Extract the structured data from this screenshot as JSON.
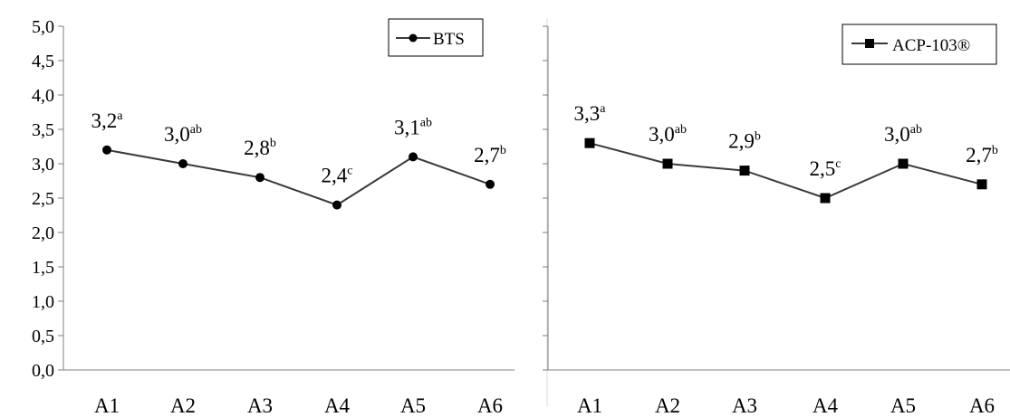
{
  "chart_data": [
    {
      "type": "line",
      "title": "",
      "xlabel": "",
      "ylabel": "",
      "categories": [
        "A1",
        "A2",
        "A3",
        "A4",
        "A5",
        "A6"
      ],
      "y_ticks": [
        "0,0",
        "0,5",
        "1,0",
        "1,5",
        "2,0",
        "2,5",
        "3,0",
        "3,5",
        "4,0",
        "4,5",
        "5,0"
      ],
      "ylim": [
        0,
        5
      ],
      "grid": false,
      "legend_position": "top-right",
      "series": [
        {
          "name": "BTS",
          "marker": "circle",
          "values": [
            3.2,
            3.0,
            2.8,
            2.4,
            3.1,
            2.7
          ],
          "labels": [
            "3,2",
            "3,0",
            "2,8",
            "2,4",
            "3,1",
            "2,7"
          ],
          "superscripts": [
            "a",
            "ab",
            "b",
            "c",
            "ab",
            "b"
          ]
        }
      ]
    },
    {
      "type": "line",
      "title": "",
      "xlabel": "",
      "ylabel": "",
      "categories": [
        "A1",
        "A2",
        "A3",
        "A4",
        "A5",
        "A6"
      ],
      "ylim": [
        0,
        5
      ],
      "grid": false,
      "legend_position": "top-right",
      "series": [
        {
          "name": "ACP-103®",
          "marker": "square",
          "values": [
            3.3,
            3.0,
            2.9,
            2.5,
            3.0,
            2.7
          ],
          "labels": [
            "3,3",
            "3,0",
            "2,9",
            "2,5",
            "3,0",
            "2,7"
          ],
          "superscripts": [
            "a",
            "ab",
            "b",
            "c",
            "ab",
            "b"
          ]
        }
      ]
    }
  ],
  "colors": {
    "line": "#3a3a3a",
    "marker": "#000000",
    "axis": "#7f7f7f",
    "panel_border": "#d9d9d9"
  }
}
